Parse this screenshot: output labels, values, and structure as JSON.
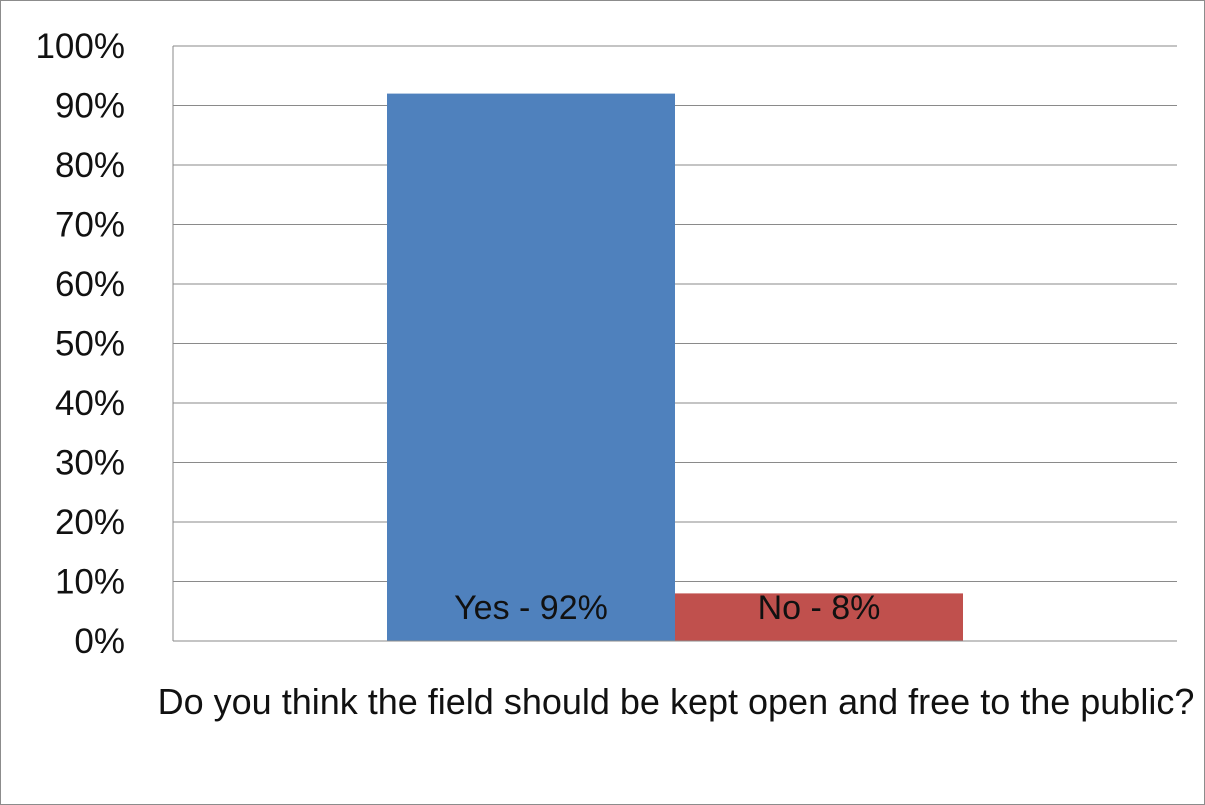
{
  "chart_data": {
    "type": "bar",
    "categories": [
      "Yes",
      "No"
    ],
    "values": [
      92,
      8
    ],
    "data_labels": [
      "Yes - 92%",
      "No - 8%"
    ],
    "colors": [
      "#4f81bd",
      "#c0504d"
    ],
    "xlabel": "Do you think the field should be kept open and free to the public?",
    "ylabel": "",
    "ylim": [
      0,
      100
    ],
    "yticks": [
      0,
      10,
      20,
      30,
      40,
      50,
      60,
      70,
      80,
      90,
      100
    ],
    "ytick_labels": [
      "0%",
      "10%",
      "20%",
      "30%",
      "40%",
      "50%",
      "60%",
      "70%",
      "80%",
      "90%",
      "100%"
    ],
    "grid": true,
    "legend": "none"
  }
}
